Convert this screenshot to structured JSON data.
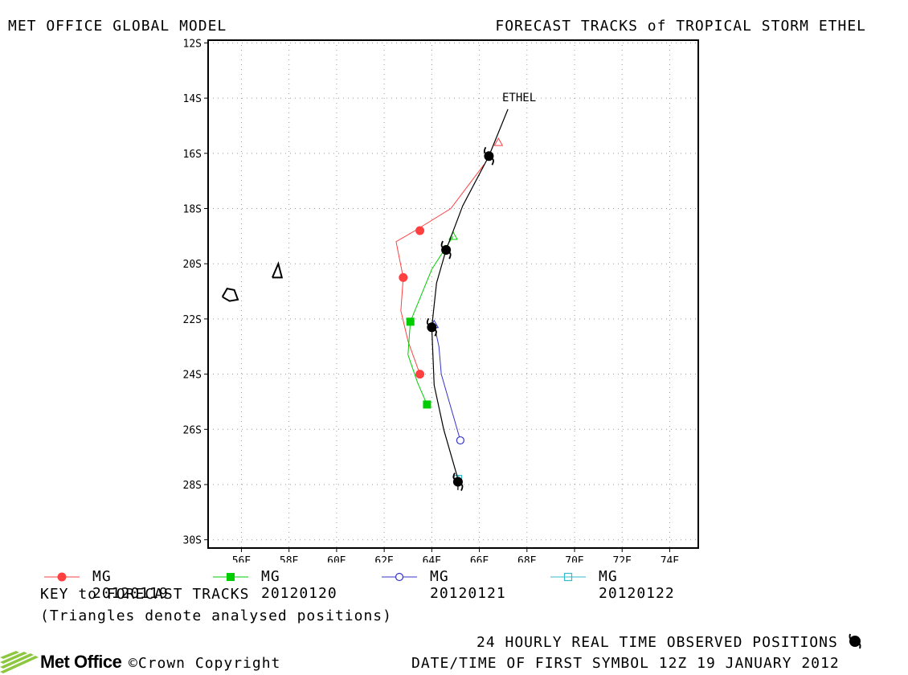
{
  "header": {
    "left_title": "MET OFFICE GLOBAL MODEL",
    "right_title": "FORECAST TRACKS of TROPICAL STORM ETHEL"
  },
  "map": {
    "lon_range": [
      54.6,
      75.2
    ],
    "lat_range": [
      -30.3,
      -11.9
    ],
    "lon_ticks": [
      "56E",
      "58E",
      "60E",
      "62E",
      "64E",
      "66E",
      "68E",
      "70E",
      "72E",
      "74E"
    ],
    "lon_tick_values": [
      56,
      58,
      60,
      62,
      64,
      66,
      68,
      70,
      72,
      74
    ],
    "lat_ticks": [
      "12S",
      "14S",
      "16S",
      "18S",
      "20S",
      "22S",
      "24S",
      "26S",
      "28S",
      "30S"
    ],
    "lat_tick_values": [
      -12,
      -14,
      -16,
      -18,
      -20,
      -22,
      -24,
      -26,
      -28,
      -30
    ],
    "storm_label": "ETHEL",
    "islands": [
      {
        "name": "island-reunion",
        "coords": [
          [
            55.2,
            -21.2
          ],
          [
            55.4,
            -20.9
          ],
          [
            55.7,
            -20.95
          ],
          [
            55.85,
            -21.3
          ],
          [
            55.5,
            -21.35
          ],
          [
            55.2,
            -21.2
          ]
        ]
      },
      {
        "name": "island-mauritius",
        "coords": [
          [
            57.3,
            -20.5
          ],
          [
            57.55,
            -20.0
          ],
          [
            57.7,
            -20.5
          ],
          [
            57.3,
            -20.5
          ]
        ]
      }
    ]
  },
  "chart_data": {
    "type": "map-tracks",
    "tracks": [
      {
        "name": "MG 20120119",
        "color": "#ff4040",
        "marker": "filled-circle",
        "analysed": [
          66.8,
          -15.6
        ],
        "points": [
          [
            66.2,
            -16.4
          ],
          [
            64.8,
            -18.0
          ],
          [
            63.3,
            -18.8
          ],
          [
            62.5,
            -19.2
          ],
          [
            62.8,
            -20.5
          ],
          [
            62.7,
            -21.7
          ],
          [
            63.0,
            -22.8
          ],
          [
            63.5,
            -24.0
          ]
        ],
        "symbols": [
          [
            63.5,
            -18.8
          ],
          [
            62.8,
            -20.5
          ],
          [
            63.5,
            -24.0
          ]
        ]
      },
      {
        "name": "MG 20120120",
        "color": "#00cc00",
        "marker": "filled-square",
        "analysed": [
          64.9,
          -19.0
        ],
        "points": [
          [
            64.9,
            -19.0
          ],
          [
            64.0,
            -20.2
          ],
          [
            63.1,
            -22.1
          ],
          [
            63.0,
            -23.3
          ],
          [
            63.4,
            -24.3
          ],
          [
            63.8,
            -25.1
          ]
        ],
        "symbols": [
          [
            63.1,
            -22.1
          ],
          [
            63.8,
            -25.1
          ]
        ]
      },
      {
        "name": "MG 20120121",
        "color": "#3333cc",
        "marker": "open-circle",
        "analysed": [
          64.1,
          -22.2
        ],
        "points": [
          [
            64.1,
            -22.2
          ],
          [
            64.3,
            -23.0
          ],
          [
            64.4,
            -24.0
          ],
          [
            64.8,
            -25.2
          ],
          [
            65.2,
            -26.4
          ]
        ],
        "symbols": [
          [
            65.2,
            -26.4
          ]
        ]
      },
      {
        "name": "MG 20120122",
        "color": "#33bbcc",
        "marker": "open-square",
        "analysed": [
          65.1,
          -27.8
        ],
        "points": [
          [
            65.1,
            -27.8
          ]
        ],
        "symbols": [
          [
            65.1,
            -27.8
          ]
        ]
      }
    ],
    "observed": {
      "name": "ETHEL",
      "color": "#000000",
      "points": [
        [
          67.2,
          -14.4
        ],
        [
          66.4,
          -16.1
        ],
        [
          65.3,
          -17.9
        ],
        [
          64.6,
          -19.5
        ],
        [
          64.2,
          -20.7
        ],
        [
          64.0,
          -22.3
        ],
        [
          64.1,
          -24.4
        ],
        [
          64.5,
          -26.0
        ],
        [
          65.1,
          -27.8
        ],
        [
          65.1,
          -28.2
        ]
      ],
      "storm_symbols": [
        [
          66.4,
          -16.1
        ],
        [
          64.6,
          -19.5
        ],
        [
          64.0,
          -22.3
        ],
        [
          65.1,
          -27.9
        ]
      ]
    }
  },
  "legend": {
    "items": [
      {
        "label": "MG 20120119",
        "color": "#ff4040",
        "marker": "filled-circle"
      },
      {
        "label": "MG 20120120",
        "color": "#00cc00",
        "marker": "filled-square"
      },
      {
        "label": "MG 20120121",
        "color": "#3333cc",
        "marker": "open-circle"
      },
      {
        "label": "MG 20120122",
        "color": "#33bbcc",
        "marker": "open-square"
      }
    ],
    "key_title": "KEY to FORECAST TRACKS",
    "key_note": "(Triangles denote analysed positions)"
  },
  "footer": {
    "observed_label": "24 HOURLY REAL TIME OBSERVED POSITIONS",
    "datetime_label": "DATE/TIME OF FIRST SYMBOL 12Z 19 JANUARY 2012",
    "copyright": "©Crown Copyright",
    "logo_text": "Met Office"
  }
}
